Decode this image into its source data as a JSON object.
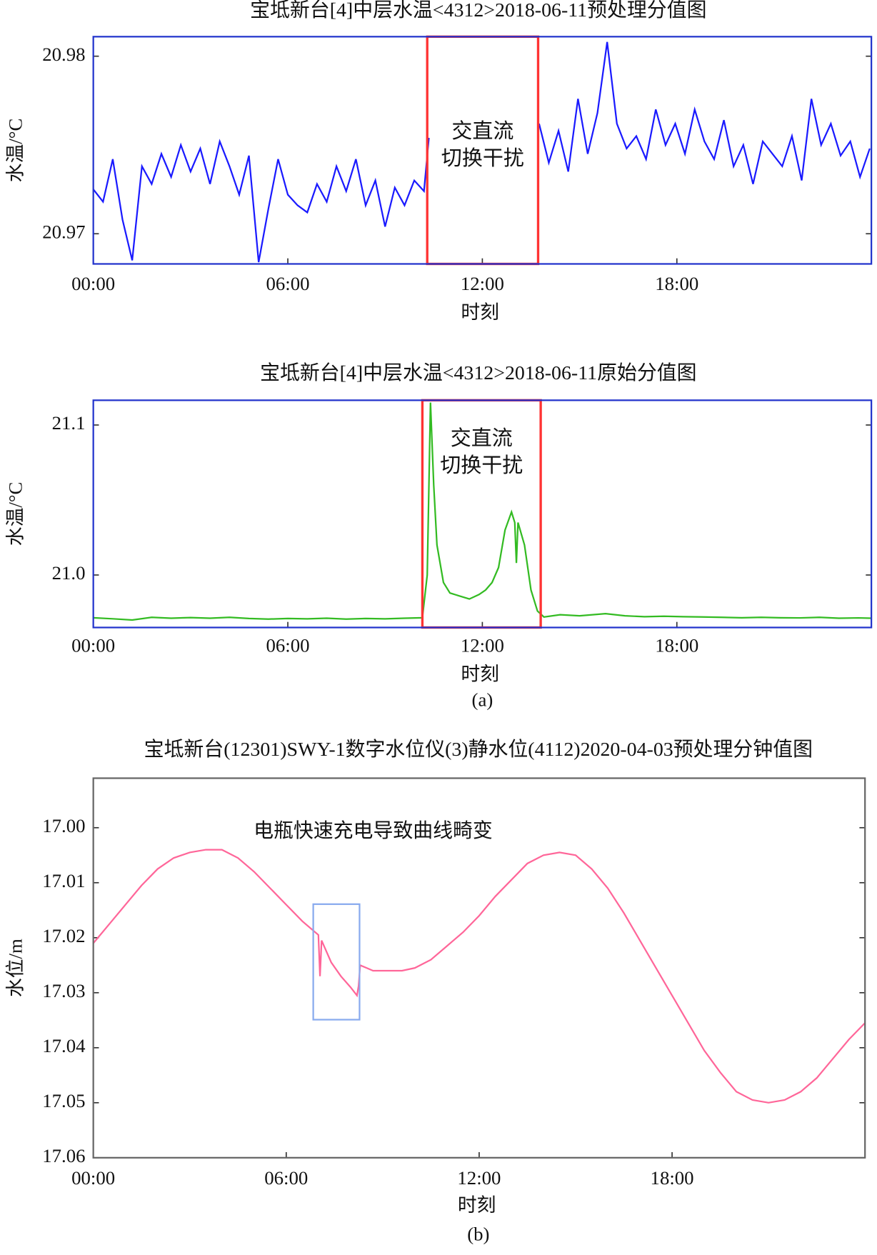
{
  "chart_data": [
    {
      "type": "line",
      "title": "宝坻新台[4]中层水温<4312>2018-06-11预处理分值图",
      "xlabel": "时刻",
      "ylabel": "水温/°C",
      "color": "#1a1aff",
      "frame_color": "#2233cc",
      "xlim": [
        0,
        24
      ],
      "xticks": [
        {
          "value": 0,
          "label": "00:00"
        },
        {
          "value": 6,
          "label": "06:00"
        },
        {
          "value": 12,
          "label": "12:00"
        },
        {
          "value": 18,
          "label": "18:00"
        }
      ],
      "ylim": [
        20.9683,
        20.9811
      ],
      "yticks": [
        20.97,
        20.98
      ],
      "x": [
        0,
        0.3,
        0.6,
        0.9,
        1.2,
        1.5,
        1.8,
        2.1,
        2.4,
        2.7,
        3.0,
        3.3,
        3.6,
        3.9,
        4.2,
        4.5,
        4.8,
        5.1,
        5.4,
        5.7,
        6.0,
        6.3,
        6.6,
        6.9,
        7.2,
        7.5,
        7.8,
        8.1,
        8.4,
        8.7,
        9.0,
        9.3,
        9.6,
        9.9,
        10.2,
        10.35,
        12,
        13.75,
        14.05,
        14.35,
        14.65,
        14.95,
        15.25,
        15.55,
        15.85,
        16.15,
        16.45,
        16.75,
        17.05,
        17.35,
        17.65,
        17.95,
        18.25,
        18.55,
        18.85,
        19.15,
        19.45,
        19.75,
        20.05,
        20.35,
        20.65,
        20.95,
        21.25,
        21.55,
        21.85,
        22.15,
        22.45,
        22.75,
        23.05,
        23.35,
        23.65,
        23.95
      ],
      "values": [
        20.9725,
        20.9718,
        20.9742,
        20.9708,
        20.9685,
        20.9738,
        20.9728,
        20.9745,
        20.9732,
        20.975,
        20.9735,
        20.9748,
        20.9728,
        20.9752,
        20.9738,
        20.9722,
        20.9744,
        20.9684,
        20.9714,
        20.9742,
        20.9722,
        20.9716,
        20.9712,
        20.9728,
        20.9718,
        20.9738,
        20.9724,
        20.9742,
        20.9716,
        20.973,
        20.9704,
        20.9726,
        20.9716,
        20.973,
        20.9724,
        20.9754,
        null,
        20.9762,
        20.974,
        20.9758,
        20.9735,
        20.9776,
        20.9745,
        20.9768,
        20.9808,
        20.9762,
        20.9748,
        20.9755,
        20.9742,
        20.977,
        20.975,
        20.9762,
        20.9745,
        20.977,
        20.9752,
        20.9742,
        20.9764,
        20.9738,
        20.975,
        20.9728,
        20.9752,
        20.9745,
        20.9738,
        20.9755,
        20.973,
        20.9776,
        20.975,
        20.9762,
        20.9744,
        20.9752,
        20.9732,
        20.9748
      ],
      "highlight": {
        "x": [
          10.3,
          13.72
        ],
        "label": [
          "交直流",
          "切换干扰"
        ],
        "color": "#ff3333"
      }
    },
    {
      "type": "line",
      "title": "宝坻新台[4]中层水温<4312>2018-06-11原始分值图",
      "xlabel": "时刻",
      "ylabel": "水温/°C",
      "color": "#33bb22",
      "frame_color": "#2233cc",
      "xlim": [
        0,
        24
      ],
      "xticks": [
        {
          "value": 0,
          "label": "00:00"
        },
        {
          "value": 6,
          "label": "06:00"
        },
        {
          "value": 12,
          "label": "12:00"
        },
        {
          "value": 18,
          "label": "18:00"
        }
      ],
      "ylim": [
        20.965,
        21.1165
      ],
      "yticks": [
        {
          "value": 21,
          "label": "21.0"
        },
        21.1
      ],
      "x": [
        0,
        0.6,
        1.2,
        1.8,
        2.4,
        3.0,
        3.6,
        4.2,
        4.8,
        5.4,
        6.0,
        6.6,
        7.2,
        7.8,
        8.4,
        9.0,
        9.6,
        10.15,
        10.3,
        10.4,
        10.5,
        10.6,
        10.8,
        11.0,
        11.3,
        11.6,
        11.9,
        12.1,
        12.3,
        12.5,
        12.7,
        12.9,
        13.0,
        13.05,
        13.1,
        13.3,
        13.5,
        13.7,
        13.9,
        14.4,
        15.0,
        15.8,
        16.4,
        17.0,
        17.6,
        18.2,
        18.8,
        19.4,
        20.0,
        20.6,
        21.2,
        21.8,
        22.4,
        23.0,
        23.6,
        24
      ],
      "values": [
        20.9715,
        20.9708,
        20.97,
        20.9718,
        20.9712,
        20.9716,
        20.9712,
        20.9718,
        20.971,
        20.9706,
        20.971,
        20.9708,
        20.9712,
        20.9706,
        20.971,
        20.9708,
        20.9712,
        20.9715,
        21.0,
        21.115,
        21.06,
        21.02,
        20.995,
        20.988,
        20.986,
        20.984,
        20.987,
        20.99,
        20.995,
        21.005,
        21.03,
        21.042,
        21.035,
        21.008,
        21.035,
        21.02,
        20.99,
        20.976,
        20.972,
        20.9735,
        20.9728,
        20.9742,
        20.9728,
        20.9722,
        20.9725,
        20.9722,
        20.972,
        20.9718,
        20.9715,
        20.9718,
        20.9715,
        20.9714,
        20.9718,
        20.9712,
        20.9714,
        20.9712
      ],
      "highlight": {
        "x": [
          10.15,
          13.8
        ],
        "label": [
          "交直流",
          "切换干扰"
        ],
        "color": "#ff3333"
      }
    },
    {
      "type": "line",
      "title": "宝坻新台(12301)SWY-1数字水位仪(3)静水位(4112)2020-04-03预处理分钟值图",
      "xlabel": "时刻",
      "ylabel": "水位/m",
      "color": "#ff6699",
      "frame_color": "#666666",
      "xlim": [
        0,
        24
      ],
      "xticks": [
        {
          "value": 0,
          "label": "00:00"
        },
        {
          "value": 6,
          "label": "06:00"
        },
        {
          "value": 12,
          "label": "12:00"
        },
        {
          "value": 18,
          "label": "18:00"
        }
      ],
      "ylim": [
        17.06,
        16.991
      ],
      "yticks": [
        {
          "value": 17,
          "label": "17.00"
        },
        17.01,
        17.02,
        17.03,
        17.04,
        17.05,
        17.06
      ],
      "x": [
        0,
        0.5,
        1,
        1.5,
        2,
        2.5,
        3,
        3.5,
        4,
        4.5,
        5,
        5.5,
        6,
        6.5,
        7.0,
        7.05,
        7.1,
        7.4,
        7.7,
        8.0,
        8.2,
        8.25,
        8.3,
        8.5,
        8.7,
        9.2,
        9.6,
        10.0,
        10.5,
        11,
        11.5,
        12,
        12.5,
        13,
        13.5,
        14,
        14.5,
        15,
        15.5,
        16,
        16.5,
        17,
        17.5,
        18,
        18.5,
        19,
        19.5,
        20,
        20.5,
        21,
        21.5,
        22,
        22.5,
        23,
        23.5,
        24
      ],
      "values": [
        17.021,
        17.0175,
        17.014,
        17.0105,
        17.0075,
        17.0055,
        17.0045,
        17.004,
        17.004,
        17.0055,
        17.008,
        17.011,
        17.014,
        17.017,
        17.0195,
        17.027,
        17.0205,
        17.0245,
        17.027,
        17.029,
        17.0305,
        17.0288,
        17.025,
        17.0255,
        17.026,
        17.026,
        17.026,
        17.0255,
        17.024,
        17.0215,
        17.019,
        17.016,
        17.0125,
        17.0095,
        17.0065,
        17.005,
        17.0045,
        17.005,
        17.0075,
        17.011,
        17.0155,
        17.0205,
        17.0255,
        17.0305,
        17.0355,
        17.0405,
        17.0445,
        17.048,
        17.0495,
        17.05,
        17.0495,
        17.048,
        17.0455,
        17.042,
        17.0385,
        17.0355
      ],
      "highlight": {
        "x": [
          6.84,
          8.28
        ],
        "y": [
          17.0349,
          17.0139
        ],
        "label": "电瓶快速充电导致曲线畸变",
        "color": "#88aaee"
      }
    }
  ],
  "captions": [
    "(a)",
    "(b)"
  ]
}
